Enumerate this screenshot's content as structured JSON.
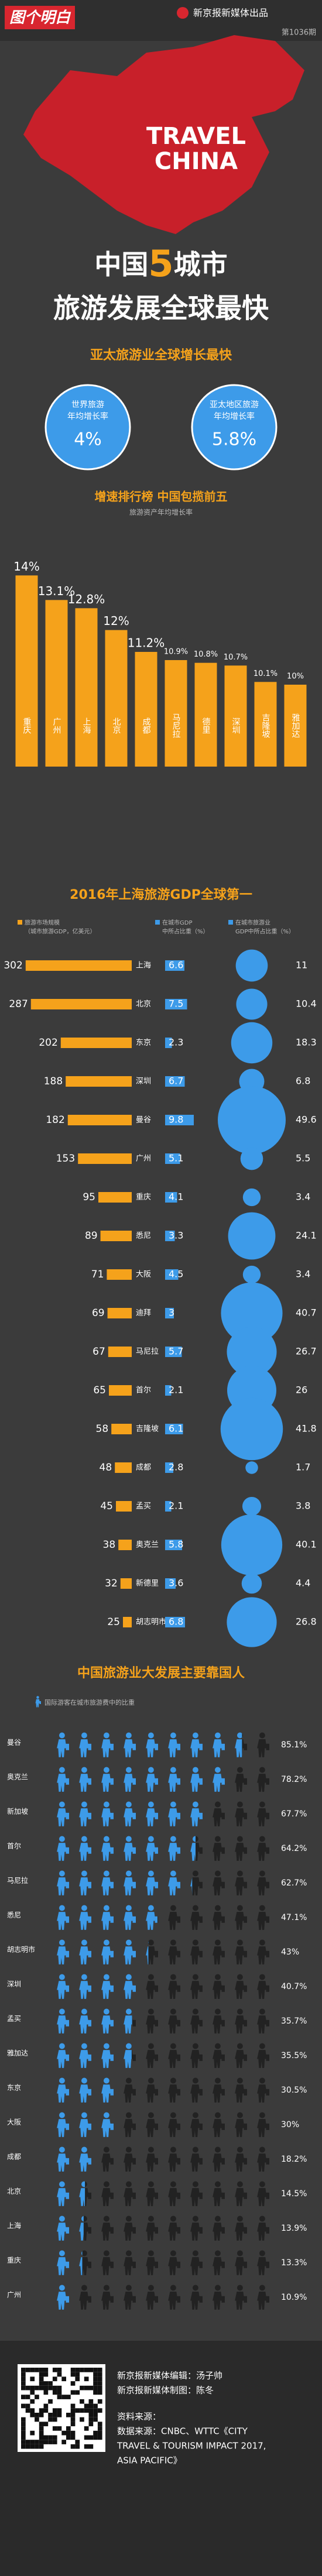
{
  "header": {
    "logo": "图个明白",
    "publisher": "新京报新媒体出品",
    "issue": "第1036期"
  },
  "hero": {
    "map_line1": "TRAVEL",
    "map_line2": "CHINA",
    "title_a": "中国",
    "title_num": "5",
    "title_b": "城市",
    "title_line2": "旅游发展全球最快"
  },
  "stats": {
    "title": "亚太旅游业全球增长最快",
    "items": [
      {
        "label1": "世界旅游",
        "label2": "年均增长率",
        "value": 4,
        "value_label": "4%"
      },
      {
        "label1": "亚太地区旅游",
        "label2": "年均增长率",
        "value": 5.8,
        "value_label": "5.8%"
      }
    ]
  },
  "chart_data": [
    {
      "type": "bar",
      "title": "增速排行榜 中国包揽前五",
      "subtitle": "旅游资产年均增长率",
      "categories": [
        "重庆",
        "广州",
        "上海",
        "北京",
        "成都",
        "马尼拉",
        "德里",
        "深圳",
        "吉隆坡",
        "雅加达"
      ],
      "values": [
        14,
        13.1,
        12.8,
        12,
        11.2,
        10.9,
        10.8,
        10.7,
        10.1,
        10
      ],
      "value_labels": [
        "14%",
        "13.1%",
        "12.8%",
        "12%",
        "11.2%",
        "10.9%",
        "10.8%",
        "10.7%",
        "10.1%",
        "10%"
      ],
      "color": "#f5a21b",
      "ylim": [
        7,
        14.5
      ]
    },
    {
      "type": "table",
      "title": "2016年上海旅游GDP全球第一",
      "categories": [
        "上海",
        "北京",
        "东京",
        "深圳",
        "曼谷",
        "广州",
        "重庆",
        "悉尼",
        "大阪",
        "迪拜",
        "马尼拉",
        "首尔",
        "吉隆坡",
        "成都",
        "孟买",
        "奥克兰",
        "新德里",
        "胡志明市"
      ],
      "series": [
        {
          "name": "旅游市场规模（城市旅游GDP，亿美元）",
          "color": "#f5a21b",
          "values": [
            302,
            287,
            202,
            188,
            182,
            153,
            95,
            89,
            71,
            69,
            67,
            65,
            58,
            48,
            45,
            38,
            32,
            25
          ]
        },
        {
          "name": "在城市GDP中所占比重（%）",
          "color": "#3d9be9",
          "values": [
            6.6,
            7.5,
            2.3,
            6.7,
            9.8,
            5.1,
            4.1,
            3.3,
            4.5,
            3,
            5.7,
            2.1,
            6.1,
            2.8,
            2.1,
            5.8,
            3.6,
            6.8
          ]
        },
        {
          "name": "在城市旅游业GDP中所占比重（%）",
          "color": "#3d9be9",
          "values": [
            11,
            10.4,
            18.3,
            6.8,
            49.6,
            5.5,
            3.4,
            24.1,
            3.4,
            40.7,
            26.7,
            26,
            41.8,
            1.7,
            3.8,
            40.1,
            4.4,
            26.8
          ]
        }
      ]
    },
    {
      "type": "pictogram",
      "title": "中国旅游业大发展主要靠国人",
      "legend": "国际游客在城市旅游费中的比重",
      "categories": [
        "曼谷",
        "奥克兰",
        "新加坡",
        "首尔",
        "马尼拉",
        "悉尼",
        "胡志明市",
        "深圳",
        "孟买",
        "雅加达",
        "东京",
        "大阪",
        "成都",
        "北京",
        "上海",
        "重庆",
        "广州"
      ],
      "values": [
        85.1,
        78.2,
        67.7,
        64.2,
        62.7,
        47.1,
        43,
        40.7,
        35.7,
        35.5,
        30.5,
        30,
        18.2,
        14.5,
        13.9,
        13.3,
        10.9
      ],
      "value_labels": [
        "85.1%",
        "78.2%",
        "67.7%",
        "64.2%",
        "62.7%",
        "47.1%",
        "43%",
        "40.7%",
        "35.7%",
        "35.5%",
        "30.5%",
        "30%",
        "18.2%",
        "14.5%",
        "13.9%",
        "13.3%",
        "10.9%"
      ],
      "highlight": [
        "深圳",
        "成都",
        "北京",
        "上海",
        "重庆",
        "广州"
      ],
      "color": "#3d9be9",
      "ylim": [
        0,
        100
      ]
    }
  ],
  "footer": {
    "editor": "新京报新媒体编辑：汤子帅",
    "designer": "新京报新媒体制图：陈冬",
    "source_label": "资料来源：",
    "source": "数据来源：CNBC、WTTC《CITY",
    "source2": "TRAVEL & TOURISM IMPACT 2017,",
    "source3": "ASIA PACIFIC》"
  }
}
